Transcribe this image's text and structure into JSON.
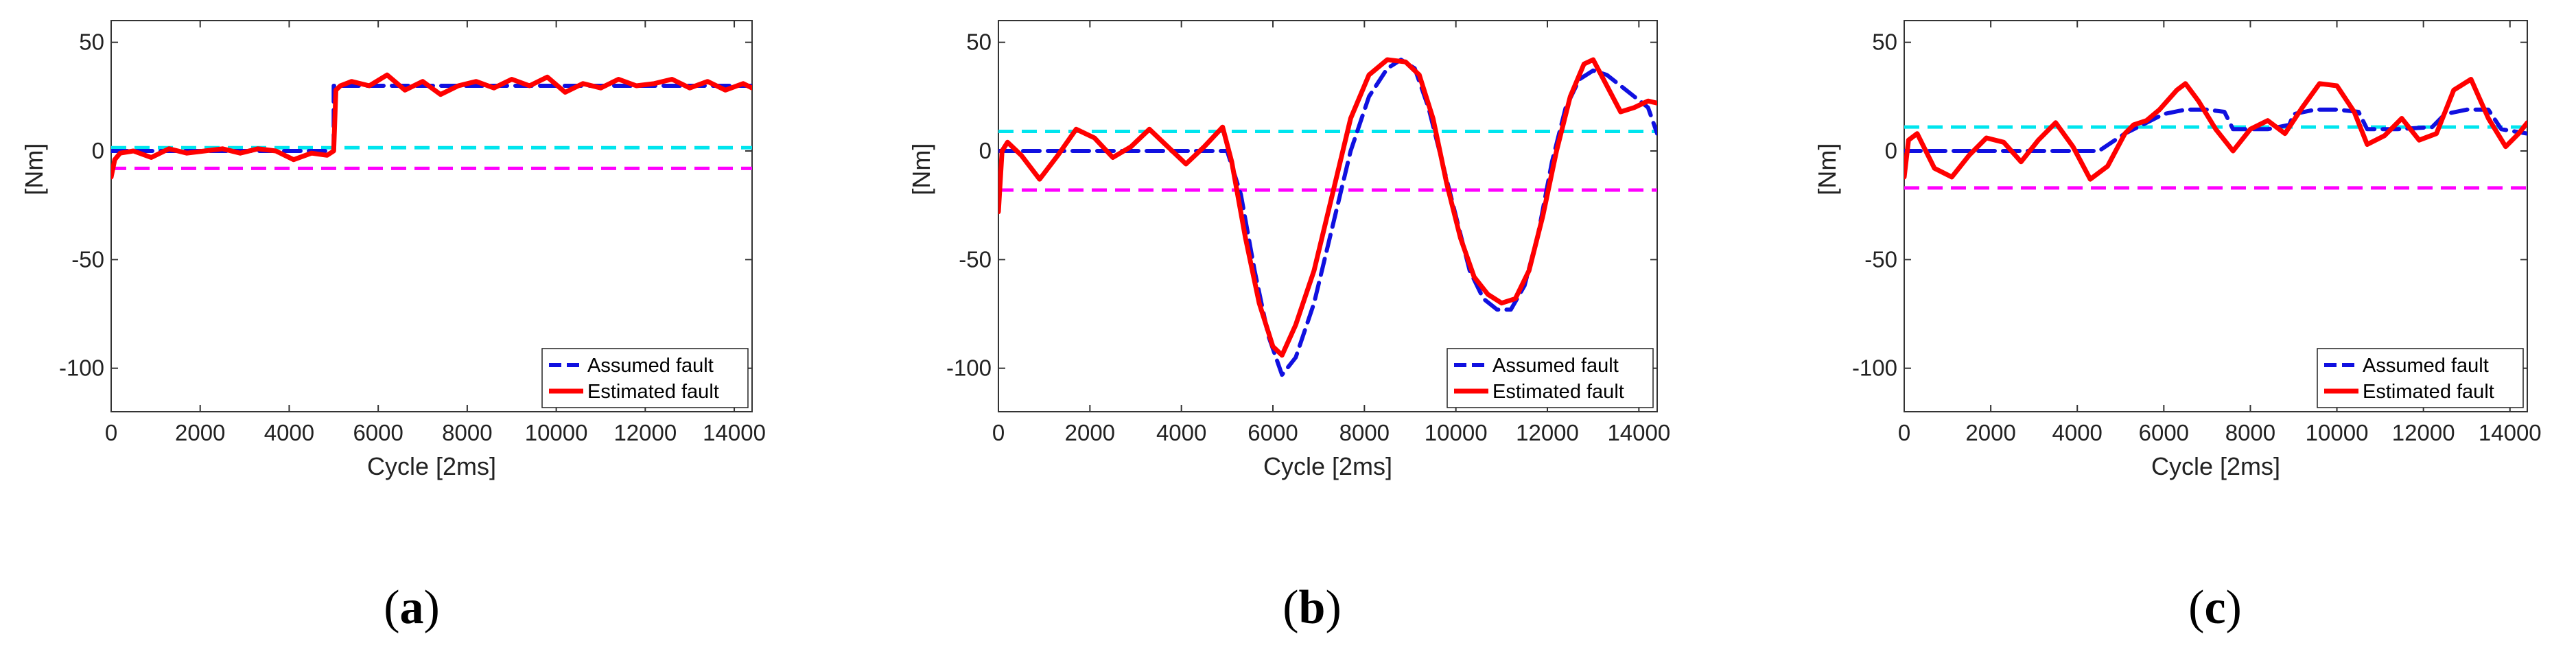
{
  "colors": {
    "assumed": "#1010e0",
    "estimated": "#ff0000",
    "threshold_upper": "#00e5ee",
    "threshold_lower": "#ff00ff",
    "axis": "#333333"
  },
  "chart_data": [
    {
      "type": "line",
      "panel": "a",
      "panel_label": {
        "open": "(",
        "letter": "a",
        "close": ")"
      },
      "xlabel": "Cycle [2ms]",
      "ylabel": "[Nm]",
      "xlim": [
        0,
        14400
      ],
      "ylim": [
        -120,
        60
      ],
      "xticks": [
        0,
        2000,
        4000,
        6000,
        8000,
        10000,
        12000,
        14000
      ],
      "yticks": [
        50,
        0,
        -50,
        -100
      ],
      "legend": {
        "position": "bottom-right",
        "entries": [
          "Assumed fault",
          "Estimated fault"
        ]
      },
      "thresholds": {
        "upper": 1.5,
        "lower": -8
      },
      "series": [
        {
          "name": "Assumed fault",
          "style": "dashed",
          "color_key": "assumed",
          "x": [
            0,
            5000,
            5000,
            14400
          ],
          "y": [
            0,
            0,
            30,
            30
          ]
        },
        {
          "name": "Estimated fault",
          "style": "solid",
          "color_key": "estimated",
          "x": [
            0,
            80,
            200,
            500,
            900,
            1300,
            1700,
            2100,
            2500,
            2900,
            3300,
            3700,
            4100,
            4500,
            4850,
            5000,
            5050,
            5150,
            5400,
            5800,
            6200,
            6600,
            7000,
            7400,
            7800,
            8200,
            8600,
            9000,
            9400,
            9800,
            10200,
            10600,
            11000,
            11400,
            11800,
            12200,
            12600,
            13000,
            13400,
            13800,
            14200,
            14400
          ],
          "y": [
            -12,
            -4,
            -1,
            0,
            -3,
            1,
            -1,
            0,
            1,
            -1,
            1,
            0,
            -4,
            -1,
            -2,
            0,
            28,
            30,
            32,
            30,
            35,
            28,
            32,
            26,
            30,
            32,
            29,
            33,
            30,
            34,
            27,
            31,
            29,
            33,
            30,
            31,
            33,
            29,
            32,
            28,
            31,
            29
          ]
        }
      ]
    },
    {
      "type": "line",
      "panel": "b",
      "panel_label": {
        "open": "(",
        "letter": "b",
        "close": ")"
      },
      "xlabel": "Cycle [2ms]",
      "ylabel": "[Nm]",
      "xlim": [
        0,
        14400
      ],
      "ylim": [
        -120,
        60
      ],
      "xticks": [
        0,
        2000,
        4000,
        6000,
        8000,
        10000,
        12000,
        14000
      ],
      "yticks": [
        50,
        0,
        -50,
        -100
      ],
      "legend": {
        "position": "bottom-right",
        "entries": [
          "Assumed fault",
          "Estimated fault"
        ]
      },
      "thresholds": {
        "upper": 9,
        "lower": -18
      },
      "series": [
        {
          "name": "Assumed fault",
          "style": "dashed",
          "color_key": "assumed",
          "x": [
            0,
            5000,
            5300,
            5600,
            5900,
            6200,
            6500,
            6900,
            7300,
            7700,
            8100,
            8500,
            8800,
            9100,
            9400,
            9700,
            10000,
            10300,
            10600,
            10900,
            11200,
            11500,
            11800,
            12100,
            12400,
            12700,
            13000,
            13300,
            13600,
            13900,
            14200,
            14400
          ],
          "y": [
            0,
            0,
            -20,
            -55,
            -85,
            -103,
            -95,
            -70,
            -35,
            0,
            25,
            38,
            42,
            38,
            20,
            -5,
            -30,
            -55,
            -68,
            -73,
            -73,
            -62,
            -38,
            -5,
            20,
            33,
            37,
            35,
            30,
            25,
            20,
            8
          ]
        },
        {
          "name": "Estimated fault",
          "style": "solid",
          "color_key": "estimated",
          "x": [
            0,
            80,
            200,
            500,
            900,
            1300,
            1700,
            2100,
            2500,
            2900,
            3300,
            3700,
            4100,
            4500,
            4900,
            5100,
            5400,
            5700,
            6000,
            6200,
            6500,
            6900,
            7300,
            7700,
            8100,
            8500,
            8900,
            9200,
            9500,
            9800,
            10100,
            10400,
            10700,
            11000,
            11300,
            11600,
            11900,
            12200,
            12500,
            12800,
            13000,
            13300,
            13600,
            13900,
            14200,
            14400
          ],
          "y": [
            -28,
            0,
            4,
            -2,
            -13,
            -2,
            10,
            6,
            -3,
            2,
            10,
            2,
            -6,
            2,
            11,
            -5,
            -40,
            -70,
            -90,
            -94,
            -80,
            -55,
            -20,
            15,
            35,
            42,
            41,
            35,
            15,
            -15,
            -40,
            -58,
            -66,
            -70,
            -68,
            -55,
            -30,
            0,
            25,
            40,
            42,
            30,
            18,
            20,
            23,
            22
          ]
        }
      ]
    },
    {
      "type": "line",
      "panel": "c",
      "panel_label": {
        "open": "(",
        "letter": "c",
        "close": ")"
      },
      "xlabel": "Cycle [2ms]",
      "ylabel": "[Nm]",
      "xlim": [
        0,
        14400
      ],
      "ylim": [
        -120,
        60
      ],
      "xticks": [
        0,
        2000,
        4000,
        6000,
        8000,
        10000,
        12000,
        14000
      ],
      "yticks": [
        50,
        0,
        -50,
        -100
      ],
      "legend": {
        "position": "bottom-right",
        "entries": [
          "Assumed fault",
          "Estimated fault"
        ]
      },
      "thresholds": {
        "upper": 11,
        "lower": -17
      },
      "series": [
        {
          "name": "Assumed fault",
          "style": "dashed",
          "color_key": "assumed",
          "x": [
            0,
            4500,
            4800,
            5100,
            5400,
            5700,
            6000,
            6500,
            7000,
            7400,
            7600,
            8400,
            8900,
            9000,
            9500,
            10000,
            10500,
            10700,
            11400,
            12200,
            12500,
            13000,
            13500,
            13800,
            14400
          ],
          "y": [
            0,
            0,
            4,
            8,
            11,
            14,
            17,
            19,
            19,
            18,
            10,
            10,
            12,
            17,
            19,
            19,
            18,
            10,
            10,
            11,
            17,
            19,
            19,
            10,
            8
          ]
        },
        {
          "name": "Estimated fault",
          "style": "solid",
          "color_key": "estimated",
          "x": [
            0,
            100,
            300,
            700,
            1100,
            1500,
            1900,
            2300,
            2700,
            3100,
            3500,
            3900,
            4300,
            4700,
            5100,
            5300,
            5600,
            5900,
            6300,
            6500,
            6800,
            7200,
            7600,
            8000,
            8400,
            8800,
            9200,
            9600,
            10000,
            10400,
            10700,
            11100,
            11500,
            11900,
            12300,
            12700,
            13100,
            13500,
            13900,
            14200,
            14400
          ],
          "y": [
            -12,
            5,
            8,
            -8,
            -12,
            -2,
            6,
            4,
            -5,
            5,
            13,
            2,
            -13,
            -7,
            8,
            12,
            14,
            19,
            28,
            31,
            23,
            10,
            0,
            10,
            14,
            8,
            20,
            31,
            30,
            18,
            3,
            7,
            15,
            5,
            8,
            28,
            33,
            15,
            2,
            8,
            13
          ]
        }
      ]
    }
  ]
}
